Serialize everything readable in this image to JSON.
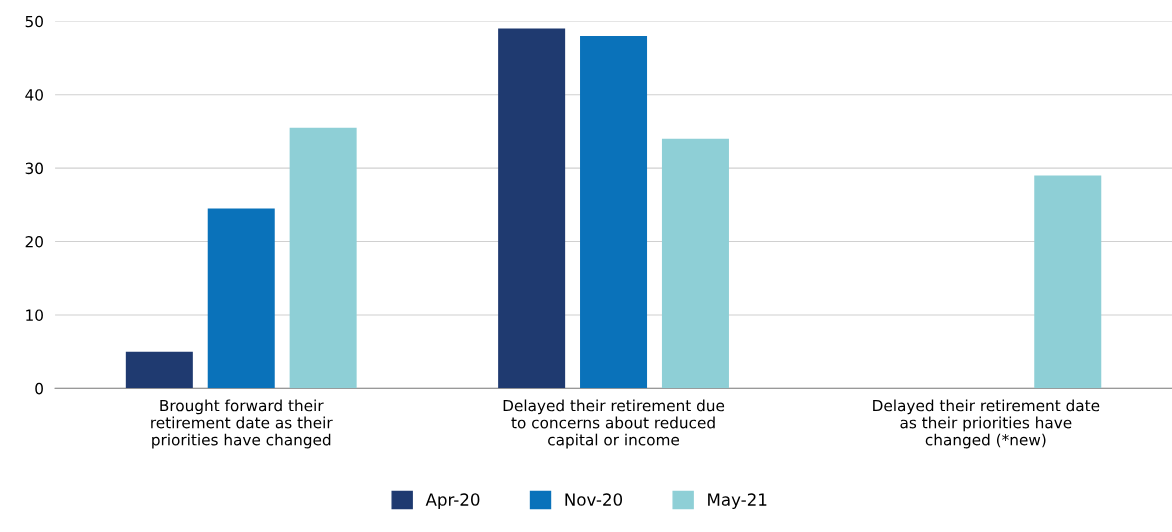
{
  "chart_data": {
    "type": "bar",
    "categories": [
      "Brought forward their\nretirement date as their\npriorities have changed",
      "Delayed their retirement due\nto concerns about reduced\ncapital or income",
      "Delayed their retirement date\nas their priorities have\nchanged (*new)"
    ],
    "series": [
      {
        "name": "Apr-20",
        "color": "#1f3a70",
        "values": [
          5,
          49,
          null
        ]
      },
      {
        "name": "Nov-20",
        "color": "#0a72ba",
        "values": [
          24.5,
          48,
          null
        ]
      },
      {
        "name": "May-21",
        "color": "#8ecfd6",
        "values": [
          35.5,
          34,
          29
        ]
      }
    ],
    "ylim": [
      0,
      50
    ],
    "yticks": [
      0,
      10,
      20,
      30,
      40,
      50
    ],
    "grid": "y",
    "legend": "bottom"
  }
}
